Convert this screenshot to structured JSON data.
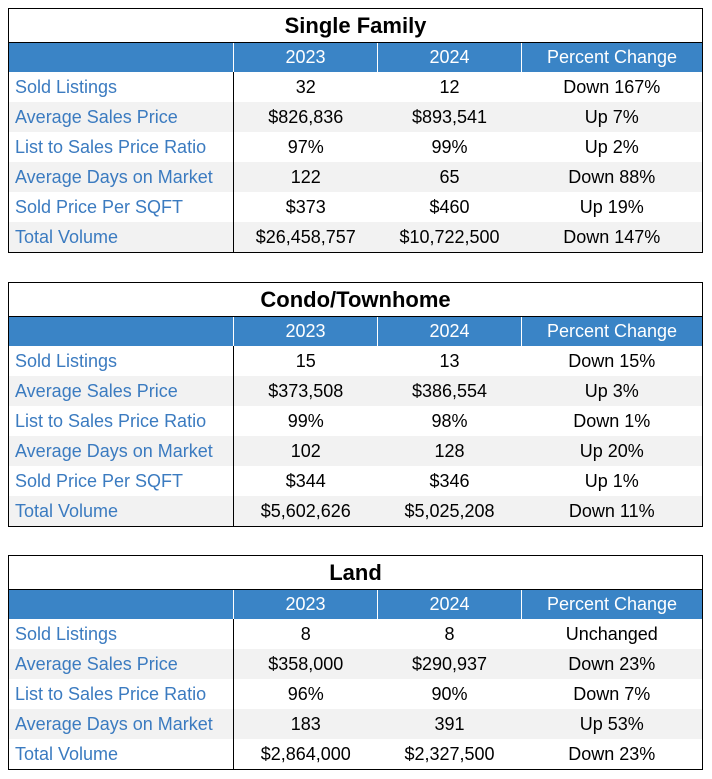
{
  "columns": [
    "",
    "2023",
    "2024",
    "Percent Change"
  ],
  "tables": [
    {
      "title": "Single Family",
      "rows": [
        {
          "label": "Sold Listings",
          "y2023": "32",
          "y2024": "12",
          "change": "Down 167%"
        },
        {
          "label": "Average Sales Price",
          "y2023": "$826,836",
          "y2024": "$893,541",
          "change": "Up 7%"
        },
        {
          "label": "List to Sales Price Ratio",
          "y2023": "97%",
          "y2024": "99%",
          "change": "Up 2%"
        },
        {
          "label": "Average Days on Market",
          "y2023": "122",
          "y2024": "65",
          "change": "Down 88%"
        },
        {
          "label": "Sold Price Per SQFT",
          "y2023": "$373",
          "y2024": "$460",
          "change": "Up 19%"
        },
        {
          "label": "Total Volume",
          "y2023": "$26,458,757",
          "y2024": "$10,722,500",
          "change": "Down 147%"
        }
      ]
    },
    {
      "title": "Condo/Townhome",
      "rows": [
        {
          "label": "Sold Listings",
          "y2023": "15",
          "y2024": "13",
          "change": "Down 15%"
        },
        {
          "label": "Average Sales Price",
          "y2023": "$373,508",
          "y2024": "$386,554",
          "change": "Up 3%"
        },
        {
          "label": "List to Sales Price Ratio",
          "y2023": "99%",
          "y2024": "98%",
          "change": "Down 1%"
        },
        {
          "label": "Average Days on Market",
          "y2023": "102",
          "y2024": "128",
          "change": "Up 20%"
        },
        {
          "label": "Sold Price Per SQFT",
          "y2023": "$344",
          "y2024": "$346",
          "change": "Up 1%"
        },
        {
          "label": "Total Volume",
          "y2023": "$5,602,626",
          "y2024": "$5,025,208",
          "change": "Down 11%"
        }
      ]
    },
    {
      "title": "Land",
      "rows": [
        {
          "label": "Sold Listings",
          "y2023": "8",
          "y2024": "8",
          "change": "Unchanged"
        },
        {
          "label": "Average Sales Price",
          "y2023": "$358,000",
          "y2024": "$290,937",
          "change": "Down 23%"
        },
        {
          "label": "List to Sales Price Ratio",
          "y2023": "96%",
          "y2024": "90%",
          "change": "Down 7%"
        },
        {
          "label": "Average Days on Market",
          "y2023": "183",
          "y2024": "391",
          "change": "Up 53%"
        },
        {
          "label": "Total Volume",
          "y2023": "$2,864,000",
          "y2024": "$2,327,500",
          "change": "Down 23%"
        }
      ]
    }
  ]
}
